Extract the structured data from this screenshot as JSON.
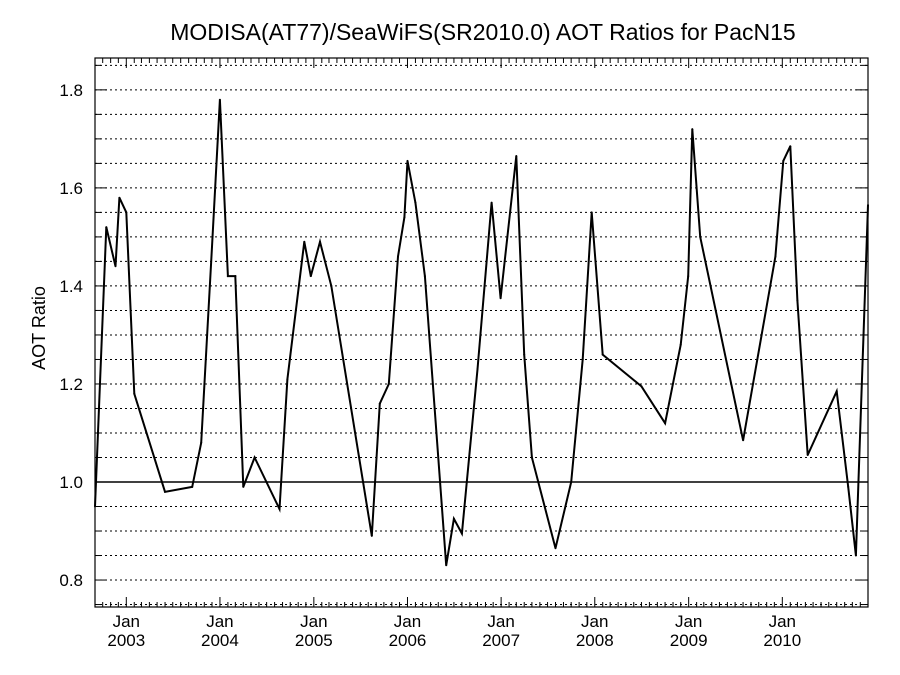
{
  "chart_data": {
    "type": "line",
    "title": "MODISA(AT77)/SeaWiFS(SR2010.0)  AOT Ratios for PacN15",
    "xlabel": "",
    "ylabel": "AOT Ratio",
    "xlim": [
      "2002-09-01",
      "2010-12-01"
    ],
    "ylim": [
      0.745,
      1.865
    ],
    "x_axis_type": "date",
    "x_ticks": [
      {
        "date": "2003-01-01",
        "month": "Jan",
        "year": "2003"
      },
      {
        "date": "2004-01-01",
        "month": "Jan",
        "year": "2004"
      },
      {
        "date": "2005-01-01",
        "month": "Jan",
        "year": "2005"
      },
      {
        "date": "2006-01-01",
        "month": "Jan",
        "year": "2006"
      },
      {
        "date": "2007-01-01",
        "month": "Jan",
        "year": "2007"
      },
      {
        "date": "2008-01-01",
        "month": "Jan",
        "year": "2008"
      },
      {
        "date": "2009-01-01",
        "month": "Jan",
        "year": "2009"
      },
      {
        "date": "2010-01-01",
        "month": "Jan",
        "year": "2010"
      }
    ],
    "y_ticks": [
      "0.8",
      "1.0",
      "1.2",
      "1.4",
      "1.6",
      "1.8"
    ],
    "y_tick_values": [
      0.8,
      1.0,
      1.2,
      1.4,
      1.6,
      1.8
    ],
    "grid": "horizontal dotted",
    "reference_line": 1.0,
    "line_color": "#000000",
    "series": [
      {
        "name": "",
        "points": [
          [
            "2002-09-01",
            0.95
          ],
          [
            "2002-10-15",
            1.52
          ],
          [
            "2002-11-20",
            1.44
          ],
          [
            "2002-12-05",
            1.58
          ],
          [
            "2003-01-01",
            1.55
          ],
          [
            "2003-02-01",
            1.18
          ],
          [
            "2003-06-01",
            0.98
          ],
          [
            "2003-09-15",
            0.99
          ],
          [
            "2003-10-20",
            1.08
          ],
          [
            "2003-12-01",
            1.48
          ],
          [
            "2004-01-01",
            1.78
          ],
          [
            "2004-02-01",
            1.42
          ],
          [
            "2004-03-01",
            1.42
          ],
          [
            "2004-04-01",
            0.99
          ],
          [
            "2004-05-15",
            1.05
          ],
          [
            "2004-08-20",
            0.945
          ],
          [
            "2004-09-20",
            1.21
          ],
          [
            "2004-11-25",
            1.49
          ],
          [
            "2004-12-20",
            1.42
          ],
          [
            "2005-01-25",
            1.49
          ],
          [
            "2005-03-10",
            1.4
          ],
          [
            "2005-08-15",
            0.89
          ],
          [
            "2005-09-15",
            1.16
          ],
          [
            "2005-10-20",
            1.2
          ],
          [
            "2005-11-25",
            1.46
          ],
          [
            "2005-12-20",
            1.54
          ],
          [
            "2006-01-01",
            1.655
          ],
          [
            "2006-02-01",
            1.57
          ],
          [
            "2006-03-10",
            1.42
          ],
          [
            "2006-06-01",
            0.83
          ],
          [
            "2006-07-01",
            0.925
          ],
          [
            "2006-08-01",
            0.895
          ],
          [
            "2006-10-01",
            1.23
          ],
          [
            "2006-11-25",
            1.57
          ],
          [
            "2006-12-30",
            1.375
          ],
          [
            "2007-03-01",
            1.665
          ],
          [
            "2007-04-01",
            1.26
          ],
          [
            "2007-05-01",
            1.05
          ],
          [
            "2007-08-01",
            0.865
          ],
          [
            "2007-10-01",
            1.0
          ],
          [
            "2007-11-15",
            1.25
          ],
          [
            "2007-12-20",
            1.55
          ],
          [
            "2008-02-01",
            1.26
          ],
          [
            "2008-07-01",
            1.195
          ],
          [
            "2008-10-01",
            1.12
          ],
          [
            "2008-12-01",
            1.28
          ],
          [
            "2008-12-30",
            1.42
          ],
          [
            "2009-01-15",
            1.72
          ],
          [
            "2009-02-15",
            1.5
          ],
          [
            "2009-08-01",
            1.085
          ],
          [
            "2009-12-05",
            1.46
          ],
          [
            "2010-01-05",
            1.655
          ],
          [
            "2010-02-01",
            1.685
          ],
          [
            "2010-03-01",
            1.37
          ],
          [
            "2010-04-10",
            1.055
          ],
          [
            "2010-08-01",
            1.185
          ],
          [
            "2010-09-15",
            0.99
          ],
          [
            "2010-10-15",
            0.85
          ],
          [
            "2010-12-01",
            1.565
          ]
        ]
      }
    ]
  }
}
